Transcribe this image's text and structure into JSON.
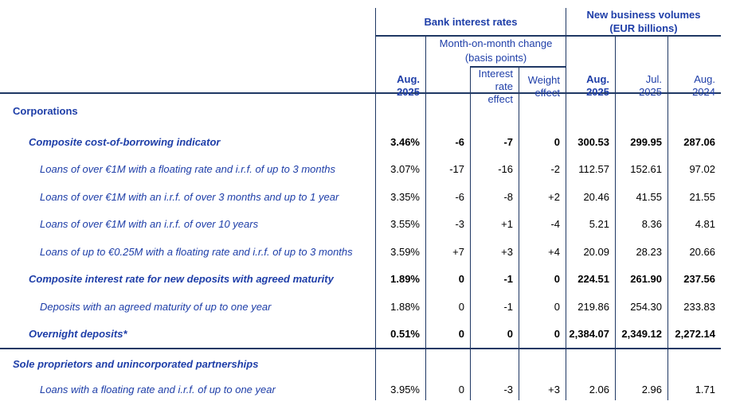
{
  "table": {
    "colors": {
      "text_blue": "#1e3ea8",
      "border": "#1f3864",
      "value_black": "#000000"
    },
    "groups": {
      "bank_interest_rates": "Bank interest rates",
      "volumes_line1": "New business volumes",
      "volumes_line2": "(EUR billions)",
      "mom_line1": "Month-on-month change",
      "mom_line2": "(basis points)"
    },
    "columns": [
      {
        "id": "rate-aug-2025",
        "line1": "Aug.",
        "line2": "2025"
      },
      {
        "id": "mom-total",
        "line1": "",
        "line2": ""
      },
      {
        "id": "interest-rate-effect",
        "line1": "Interest",
        "line2": "rate effect"
      },
      {
        "id": "weight-effect",
        "line1": "Weight",
        "line2": "effect"
      },
      {
        "id": "volume-aug-2025",
        "line1": "Aug.",
        "line2": "2025"
      },
      {
        "id": "volume-jul-2025",
        "line1": "Jul.",
        "line2": "2025"
      },
      {
        "id": "volume-aug-2024",
        "line1": "Aug.",
        "line2": "2024"
      }
    ],
    "rows": [
      {
        "label": "Corporations",
        "section": true,
        "italic": false,
        "indent": 0,
        "first": true,
        "values": [
          "",
          "",
          "",
          "",
          "",
          "",
          ""
        ]
      },
      {
        "label": "Composite cost-of-borrowing indicator",
        "bold": true,
        "indent": 1,
        "values": [
          "3.46%",
          "-6",
          "-7",
          "0",
          "300.53",
          "299.95",
          "287.06"
        ]
      },
      {
        "label": "Loans of over €1M with a floating rate and i.r.f. of up to 3 months",
        "indent": 2,
        "values": [
          "3.07%",
          "-17",
          "-16",
          "-2",
          "112.57",
          "152.61",
          "97.02"
        ]
      },
      {
        "label": "Loans of over €1M with an i.r.f. of over 3 months and up to 1 year",
        "indent": 2,
        "values": [
          "3.35%",
          "-6",
          "-8",
          "+2",
          "20.46",
          "41.55",
          "21.55"
        ]
      },
      {
        "label": "Loans of over €1M with an i.r.f. of over 10 years",
        "indent": 2,
        "values": [
          "3.55%",
          "-3",
          "+1",
          "-4",
          "5.21",
          "8.36",
          "4.81"
        ]
      },
      {
        "label": "Loans of up to €0.25M with a floating rate and i.r.f. of up to 3 months",
        "indent": 2,
        "values": [
          "3.59%",
          "+7",
          "+3",
          "+4",
          "20.09",
          "28.23",
          "20.66"
        ]
      },
      {
        "label": "Composite interest rate for new deposits with agreed maturity",
        "bold": true,
        "indent": 1,
        "values": [
          "1.89%",
          "0",
          "-1",
          "0",
          "224.51",
          "261.90",
          "237.56"
        ]
      },
      {
        "label": "Deposits with an agreed maturity of up to one year",
        "indent": 2,
        "values": [
          "1.88%",
          "0",
          "-1",
          "0",
          "219.86",
          "254.30",
          "233.83"
        ]
      },
      {
        "label": "Overnight deposits*",
        "bold": true,
        "indent": 1,
        "values": [
          "0.51%",
          "0",
          "0",
          "0",
          "2,384.07",
          "2,349.12",
          "2,272.14"
        ]
      },
      {
        "label": "Sole proprietors and unincorporated partnerships",
        "section": true,
        "indent": 0,
        "separator_above": true,
        "tall": true,
        "values": [
          "",
          "",
          "",
          "",
          "",
          "",
          ""
        ]
      },
      {
        "label": "Loans with a floating rate and i.r.f. of up to one year",
        "indent": 2,
        "short": true,
        "values": [
          "3.95%",
          "0",
          "-3",
          "+3",
          "2.06",
          "2.96",
          "1.71"
        ]
      }
    ]
  }
}
